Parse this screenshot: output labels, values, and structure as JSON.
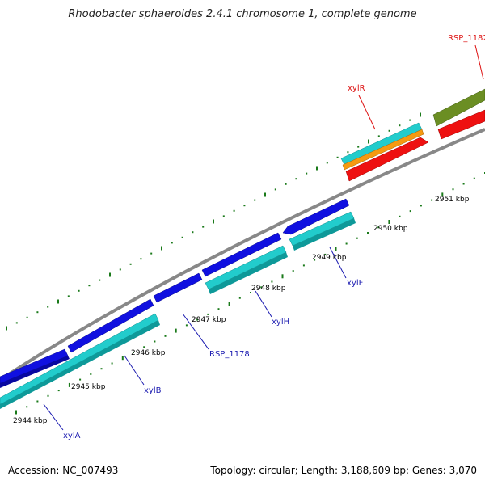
{
  "title": "Rhodobacter sphaeroides 2.4.1 chromosome 1, complete genome",
  "footer": {
    "accession": "Accession: NC_007493",
    "stats": "Topology: circular; Length: 3,188,609 bp; Genes: 3,070"
  },
  "kbp_labels": [
    "2944 kbp",
    "2945 kbp",
    "2946 kbp",
    "2947 kbp",
    "2948 kbp",
    "2949 kbp",
    "2950 kbp",
    "2951 kbp"
  ],
  "gene_labels": {
    "xylA": "xylA",
    "xylB": "xylB",
    "RSP_1178": "RSP_1178",
    "xylH": "xylH",
    "xylF": "xylF",
    "xylR": "xylR",
    "RSP_1182": "RSP_1182"
  },
  "colors": {
    "blue_gene": "#1010e0",
    "cyan_gene": "#22cccc",
    "orange_gene": "#f59a10",
    "red_gene": "#ee1111",
    "olive_gene": "#6b8e23",
    "backbone": "#888888",
    "tick": "#1a7a1a",
    "label_blue": "#1a1ab0",
    "label_red": "#dd1111"
  }
}
